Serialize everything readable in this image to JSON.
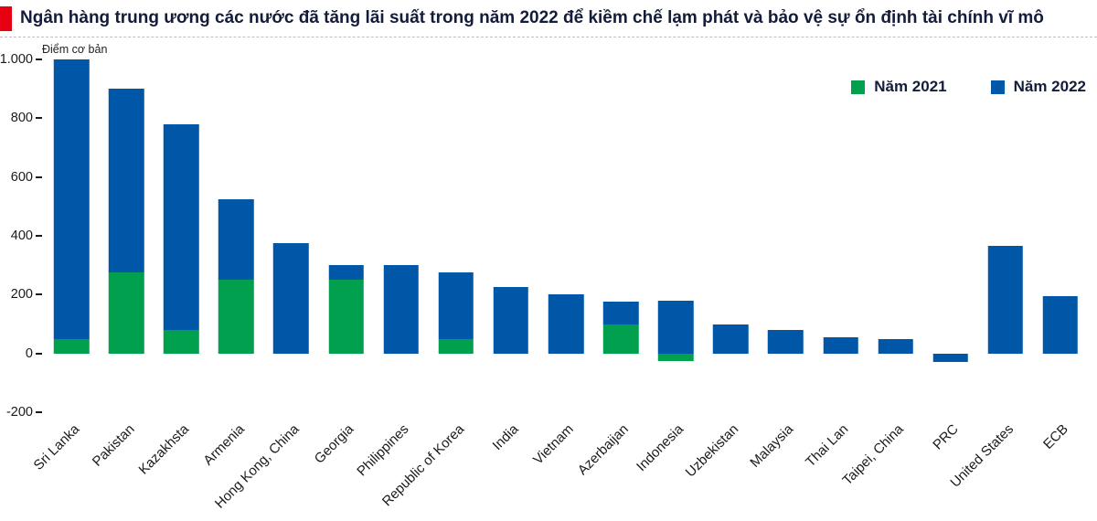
{
  "header": {
    "title": "Ngân hàng trung ương các nước đã tăng lãi suất trong năm 2022 để kiềm chế lạm phát và bảo vệ sự ổn định tài chính vĩ mô"
  },
  "colors": {
    "accent_red": "#e60012",
    "series_2021_green": "#00a04e",
    "series_2022_blue": "#0056a7",
    "title_navy": "#131c3b"
  },
  "chart_data": {
    "type": "bar",
    "stacked": true,
    "title": "Ngân hàng trung ương các nước đã tăng lãi suất trong năm 2022 để kiềm chế lạm phát và bảo vệ sự ổn định tài chính vĩ mô",
    "xlabel": "",
    "ylabel": "Điểm cơ bản",
    "ylim": [
      -200,
      1000
    ],
    "grid": false,
    "legend_position": "top-right",
    "yticks": [
      {
        "label": "1.000",
        "value": 1000
      },
      {
        "label": "800",
        "value": 800
      },
      {
        "label": "600",
        "value": 600
      },
      {
        "label": "400",
        "value": 400
      },
      {
        "label": "200",
        "value": 200
      },
      {
        "label": "0",
        "value": 0
      },
      {
        "label": "-200",
        "value": -200
      }
    ],
    "categories": [
      "Sri Lanka",
      "Pakistan",
      "Kazakhsta",
      "Armenia",
      "Hong Kong, China",
      "Georgia",
      "Philippines",
      "Republic of Korea",
      "India",
      "Vietnam",
      "Azerbaijan",
      "Indonesia",
      "Uzbekistan",
      "Malaysia",
      "Thai Lan",
      "Taipei, China",
      "PRC",
      "United States",
      "ECB"
    ],
    "series": [
      {
        "name": "Năm 2021",
        "color": "#00a04e",
        "values": [
          50,
          275,
          80,
          250,
          0,
          250,
          0,
          50,
          0,
          0,
          100,
          -25,
          0,
          0,
          0,
          0,
          0,
          0,
          0
        ]
      },
      {
        "name": "Năm 2022",
        "color": "#0056a7",
        "values": [
          950,
          625,
          700,
          275,
          375,
          50,
          300,
          225,
          225,
          200,
          75,
          180,
          100,
          80,
          55,
          50,
          -30,
          365,
          195
        ]
      }
    ]
  }
}
